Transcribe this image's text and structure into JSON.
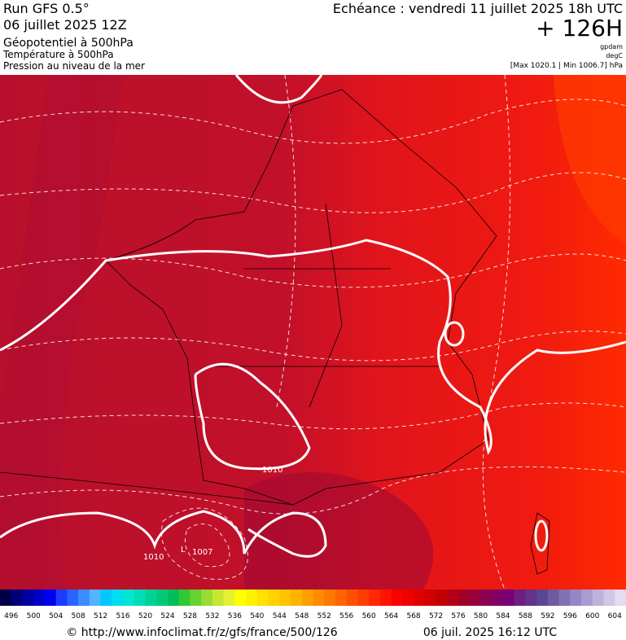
{
  "header": {
    "left": [
      "Run GFS 0.5°",
      "06 juillet 2025 12Z",
      "Géopotentiel à 500hPa",
      "Température à 500hPa",
      "Pression au niveau de la mer"
    ],
    "valid": "Echéance : vendredi 11 juillet 2025 18h UTC",
    "lead": "+ 126H",
    "units": [
      "gpdam",
      "degC"
    ],
    "range": "[Max 1020.1 | Min 1006.7] hPa"
  },
  "map": {
    "labels": [
      "1010",
      "1010",
      "L",
      "1007"
    ]
  },
  "legend": {
    "colors": [
      "#00004a",
      "#000078",
      "#0000a0",
      "#0000c8",
      "#0000f0",
      "#1e3cff",
      "#2864ff",
      "#3c8cff",
      "#50b4ff",
      "#00c8ff",
      "#00dcf0",
      "#00e6d2",
      "#00dcb4",
      "#00d296",
      "#00c878",
      "#00be5a",
      "#32c832",
      "#64d232",
      "#96dc32",
      "#c8e632",
      "#e6f032",
      "#ffff00",
      "#fff000",
      "#ffe100",
      "#ffd200",
      "#ffc300",
      "#ffb400",
      "#ffa000",
      "#ff8c00",
      "#ff7800",
      "#ff6400",
      "#ff5000",
      "#ff3c00",
      "#ff2800",
      "#ff1400",
      "#ff0000",
      "#f00000",
      "#e10000",
      "#d20000",
      "#c30000",
      "#b40014",
      "#a00028",
      "#96003c",
      "#8c0050",
      "#820064",
      "#780078",
      "#6e1e82",
      "#64328c",
      "#5a4696",
      "#6e5aa0",
      "#8270b4",
      "#9686c8",
      "#aa9cd2",
      "#beb2dc",
      "#d2c8e6",
      "#e6dcf0"
    ],
    "labels": [
      496,
      500,
      504,
      508,
      512,
      516,
      520,
      524,
      528,
      532,
      536,
      540,
      544,
      548,
      552,
      556,
      560,
      564,
      568,
      572,
      576,
      580,
      584,
      588,
      592,
      596,
      600,
      604
    ]
  },
  "footer": {
    "source": "© http://www.infoclimat.fr/z/gfs/france/500/126",
    "timestamp": "06 juil. 2025 16:12 UTC"
  }
}
